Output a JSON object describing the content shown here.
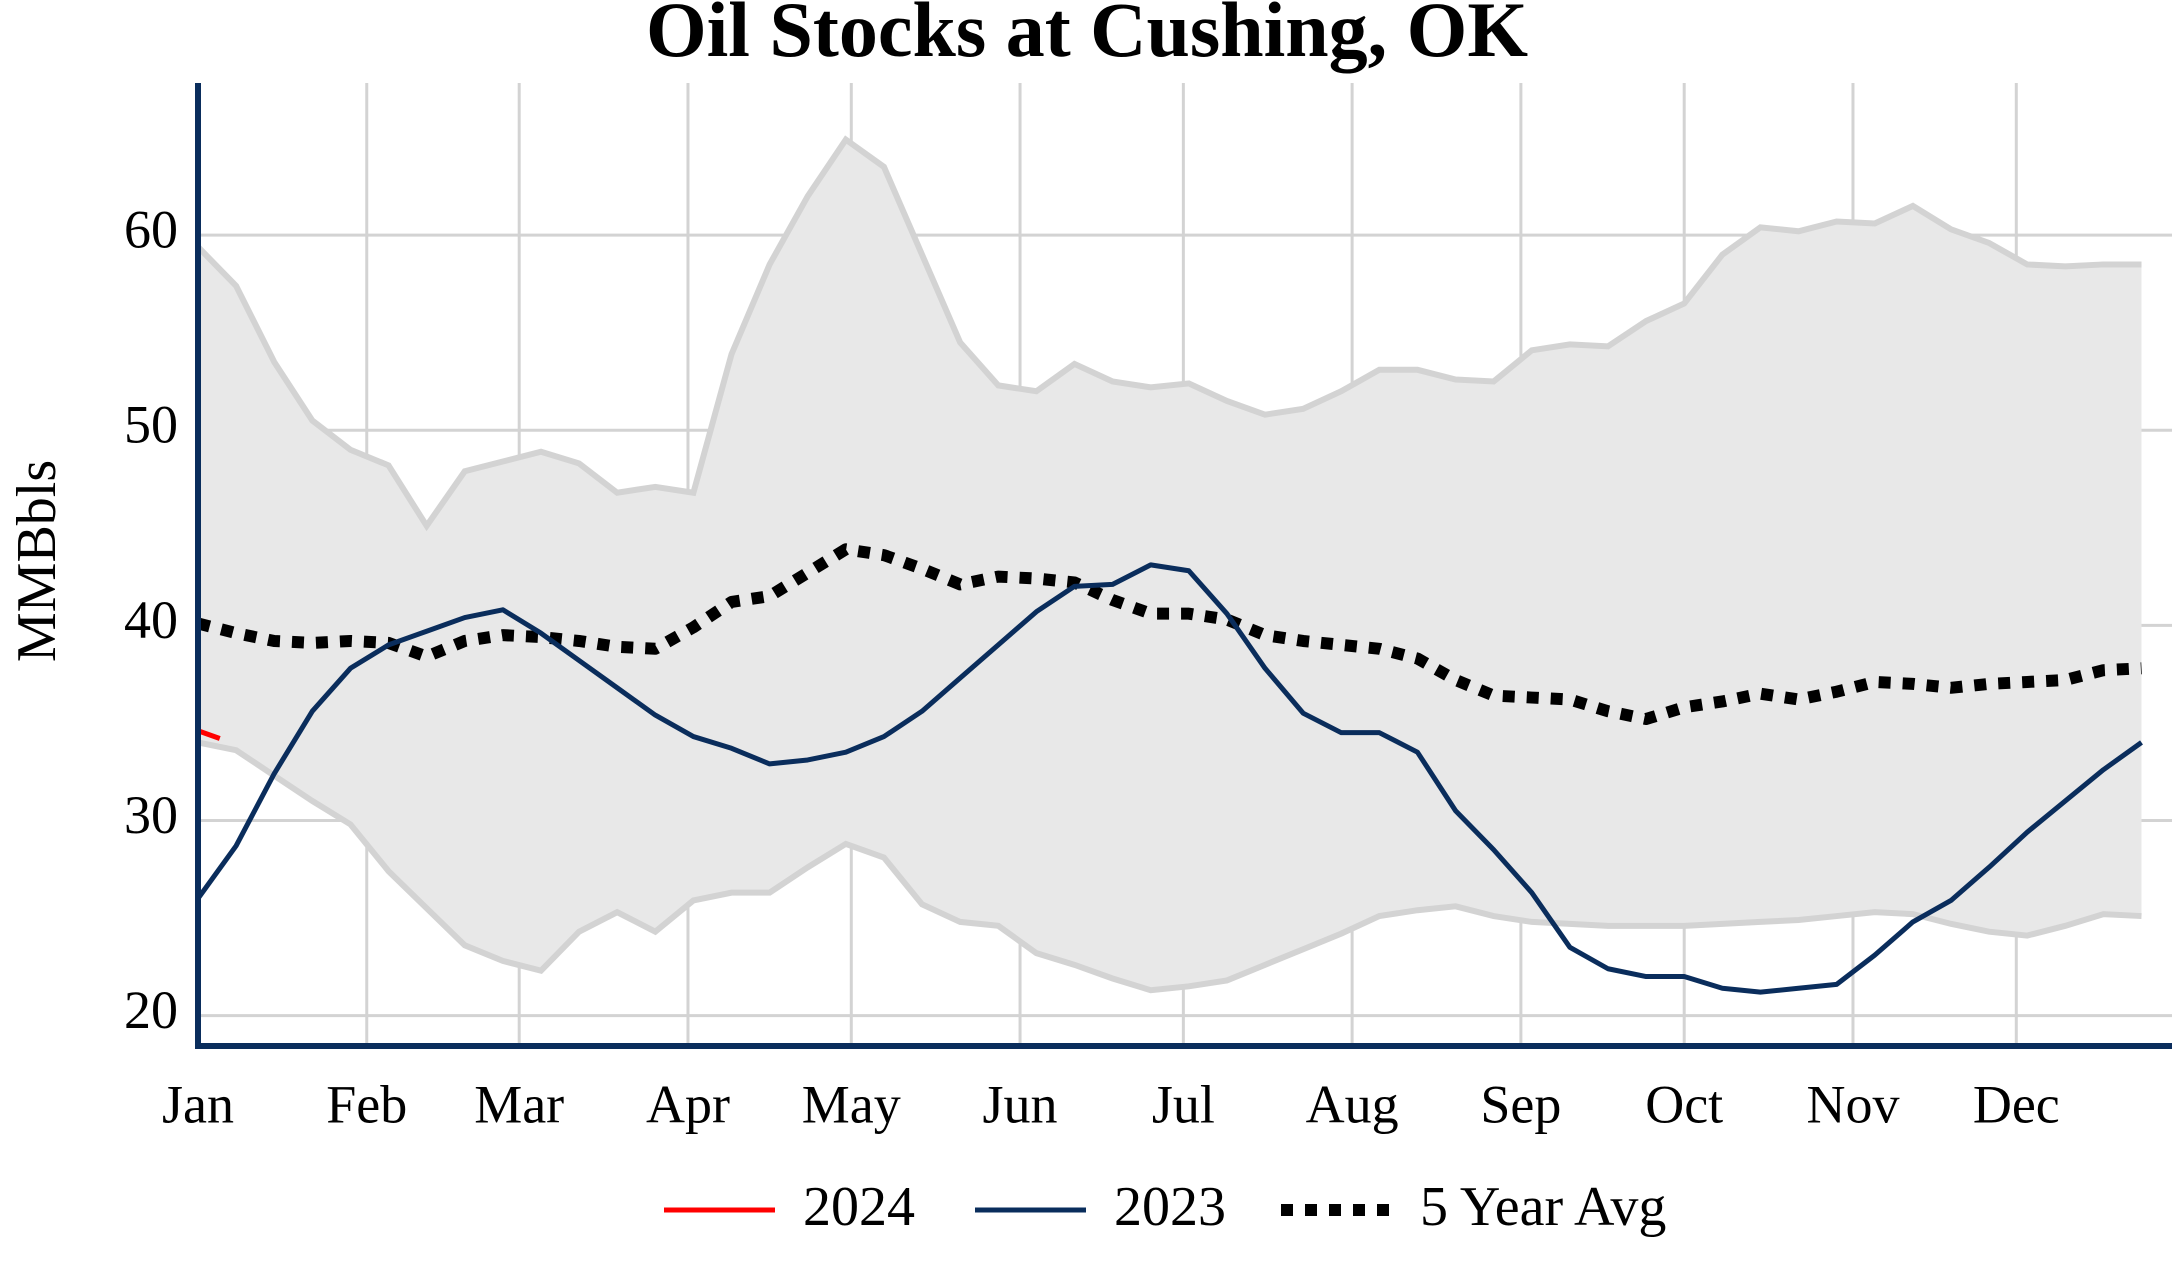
{
  "chart_data": {
    "type": "line",
    "title": "Oil Stocks at Cushing, OK",
    "y_label": "MMBbls",
    "x": [
      0,
      7,
      14,
      21,
      28,
      35,
      42,
      49,
      56,
      63,
      70,
      77,
      84,
      91,
      98,
      105,
      112,
      119,
      126,
      133,
      140,
      147,
      154,
      161,
      168,
      175,
      182,
      189,
      196,
      203,
      210,
      217,
      224,
      231,
      238,
      245,
      252,
      259,
      266,
      273,
      280,
      287,
      294,
      301,
      308,
      315,
      322,
      329,
      336,
      343,
      350,
      357
    ],
    "xlim": [
      0,
      362.6
    ],
    "xticks": [
      {
        "value": 0,
        "label": "Jan"
      },
      {
        "value": 31,
        "label": "Feb"
      },
      {
        "value": 59,
        "label": "Mar"
      },
      {
        "value": 90,
        "label": "Apr"
      },
      {
        "value": 120,
        "label": "May"
      },
      {
        "value": 151,
        "label": "Jun"
      },
      {
        "value": 181,
        "label": "Jul"
      },
      {
        "value": 212,
        "label": "Aug"
      },
      {
        "value": 243,
        "label": "Sep"
      },
      {
        "value": 273,
        "label": "Oct"
      },
      {
        "value": 304,
        "label": "Nov"
      },
      {
        "value": 334,
        "label": "Dec"
      }
    ],
    "ylim": [
      18.44,
      67.8
    ],
    "yticks": [
      20,
      30,
      40,
      50,
      60
    ],
    "grid": true,
    "band": {
      "color": "#e8e8e8",
      "edge_color": "#d3d3d3",
      "upper": [
        59.4,
        57.4,
        53.5,
        50.5,
        49,
        48.2,
        45.1,
        47.9,
        48.4,
        48.9,
        48.3,
        46.8,
        47.1,
        46.8,
        53.9,
        58.5,
        62,
        64.9,
        63.5,
        59,
        54.5,
        52.3,
        52,
        53.4,
        52.5,
        52.2,
        52.4,
        51.5,
        50.8,
        51.1,
        52,
        53.1,
        53.1,
        52.6,
        52.5,
        54.1,
        54.4,
        54.3,
        55.6,
        56.5,
        59,
        60.4,
        60.2,
        60.7,
        60.6,
        61.5,
        60.3,
        59.6,
        58.5,
        58.4,
        58.5,
        58.5
      ],
      "lower": [
        34,
        33.6,
        32.3,
        31,
        29.8,
        27.4,
        25.5,
        23.6,
        22.8,
        22.3,
        24.3,
        25.3,
        24.3,
        25.9,
        26.3,
        26.3,
        27.6,
        28.8,
        28.1,
        25.7,
        24.8,
        24.6,
        23.2,
        22.6,
        21.9,
        21.3,
        21.5,
        21.8,
        22.6,
        23.4,
        24.2,
        25.1,
        25.4,
        25.6,
        25.1,
        24.8,
        24.7,
        24.6,
        24.6,
        24.6,
        24.7,
        24.8,
        24.9,
        25.1,
        25.3,
        25.2,
        24.7,
        24.3,
        24.1,
        24.6,
        25.2,
        25.1
      ]
    },
    "series": [
      {
        "name": "2024",
        "color": "#ff0000",
        "x": [
          0,
          4
        ],
        "values": [
          34.6,
          34.2
        ]
      },
      {
        "name": "2023",
        "color": "#0a2d5c",
        "values": [
          26,
          28.7,
          32.4,
          35.6,
          37.8,
          39,
          39.7,
          40.4,
          40.8,
          39.6,
          38.2,
          36.8,
          35.4,
          34.3,
          33.7,
          32.9,
          33.1,
          33.5,
          34.3,
          35.6,
          37.3,
          39,
          40.7,
          42,
          42.1,
          43.1,
          42.8,
          40.6,
          37.8,
          35.5,
          34.5,
          34.5,
          33.5,
          30.5,
          28.5,
          26.3,
          23.5,
          22.4,
          22,
          22,
          21.4,
          21.2,
          21.4,
          21.6,
          23.1,
          24.8,
          25.9,
          27.6,
          29.4,
          31,
          32.6,
          34
        ]
      },
      {
        "name": "5 Year Avg",
        "color": "#000000",
        "dashed": true,
        "values": [
          40.1,
          39.6,
          39.2,
          39.1,
          39.2,
          39.1,
          38.4,
          39.2,
          39.5,
          39.4,
          39.2,
          38.9,
          38.8,
          39.9,
          41.2,
          41.5,
          42.7,
          43.9,
          43.6,
          42.9,
          42.1,
          42.5,
          42.4,
          42.2,
          41.3,
          40.6,
          40.6,
          40.3,
          39.5,
          39.2,
          39,
          38.8,
          38.3,
          37.2,
          36.4,
          36.3,
          36.2,
          35.6,
          35.2,
          35.8,
          36.1,
          36.5,
          36.2,
          36.6,
          37.1,
          37,
          36.8,
          37,
          37.1,
          37.2,
          37.7,
          37.8
        ]
      }
    ]
  }
}
